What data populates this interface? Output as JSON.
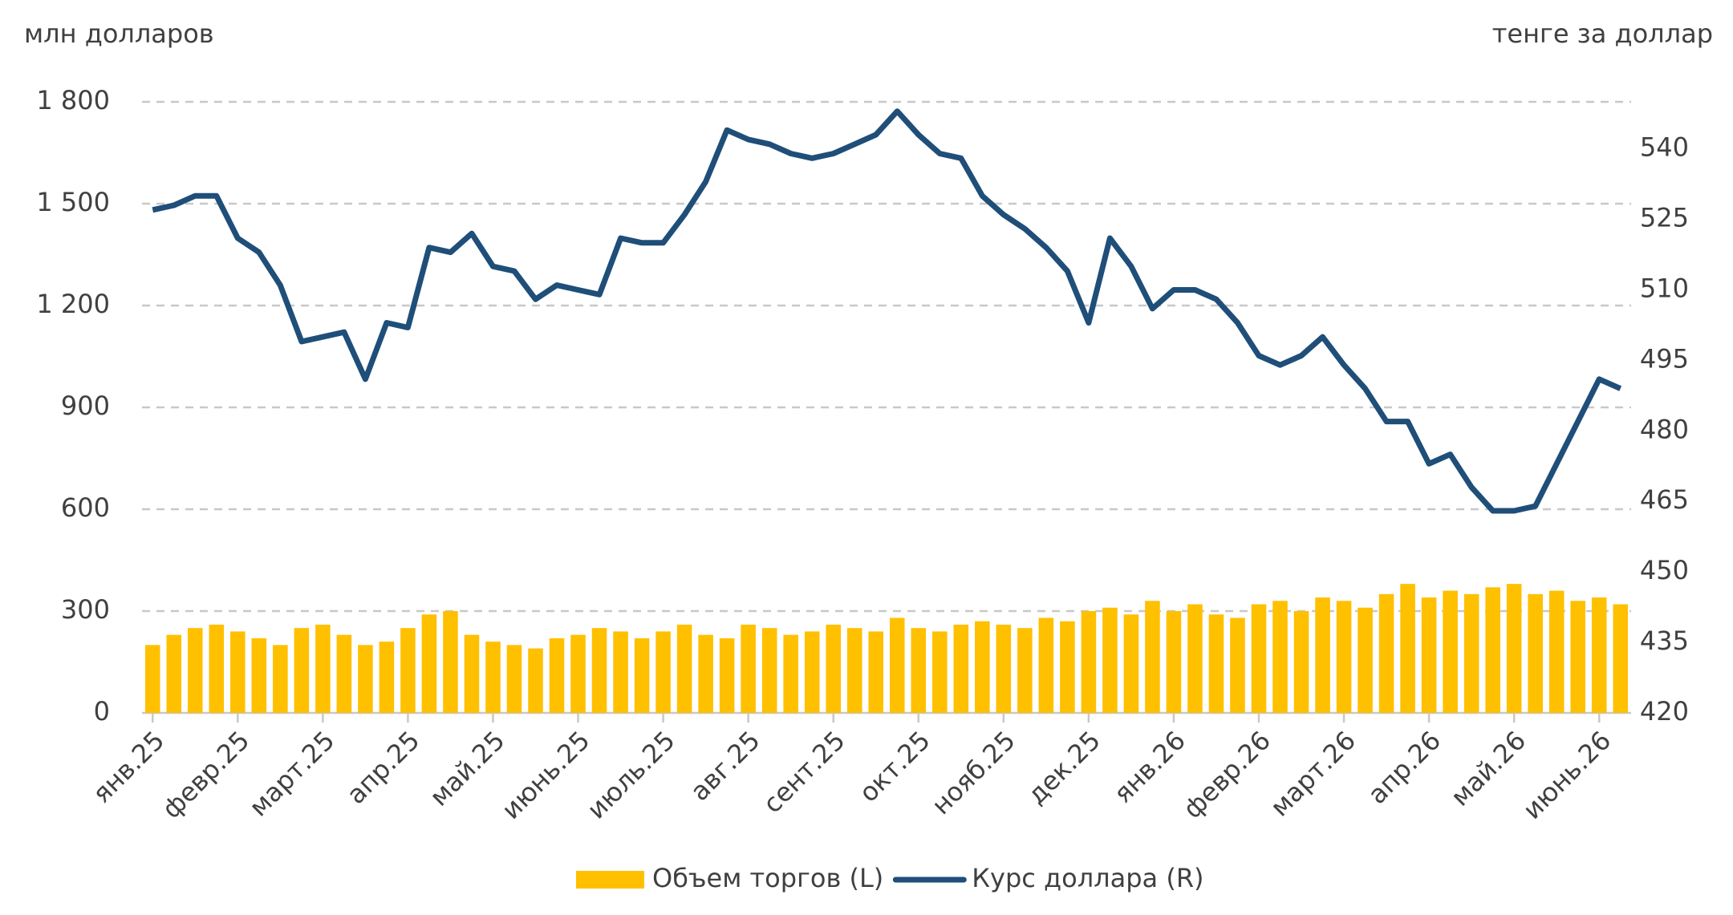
{
  "chart_data": {
    "type": "combo",
    "y_label": "млн долларов",
    "y2_label": "тенге за доллар",
    "categories": [
      "янв.25",
      null,
      null,
      null,
      "февр.25",
      null,
      null,
      null,
      "март.25",
      null,
      null,
      null,
      "апр.25",
      null,
      null,
      null,
      "май.25",
      null,
      null,
      null,
      "июнь.25",
      null,
      null,
      null,
      "июль.25",
      null,
      null,
      null,
      "авг.25",
      null,
      null,
      null,
      "сент.25",
      null,
      null,
      null,
      "окт.25",
      null,
      null,
      null,
      "нояб.25",
      null,
      null,
      null,
      "дек.25",
      null,
      null,
      null,
      "янв.26",
      null,
      null,
      null,
      "февр.26",
      null,
      null,
      null,
      "март.26",
      null,
      null,
      null,
      "апр.26",
      null,
      null,
      null,
      "май.26",
      null,
      null,
      null,
      "июнь.26",
      null
    ],
    "series": [
      {
        "name": "Объем торгов (L)",
        "type": "bar",
        "color": "#FFC000",
        "values": [
          200,
          230,
          250,
          260,
          240,
          220,
          200,
          250,
          260,
          230,
          200,
          210,
          250,
          290,
          300,
          230,
          210,
          200,
          190,
          220,
          230,
          250,
          240,
          220,
          240,
          260,
          230,
          220,
          260,
          250,
          230,
          240,
          260,
          250,
          240,
          280,
          250,
          240,
          260,
          270,
          260,
          250,
          280,
          270,
          300,
          310,
          290,
          330,
          300,
          320,
          290,
          280,
          320,
          330,
          300,
          340,
          330,
          310,
          350,
          380,
          340,
          360,
          350,
          370,
          380,
          350,
          360,
          330,
          340,
          320
        ]
      },
      {
        "name": "Курс доллара (R)",
        "type": "line",
        "axis": "y2",
        "color": "#1F4E79",
        "values": [
          527,
          528,
          530,
          530,
          521,
          518,
          511,
          499,
          500,
          501,
          491,
          503,
          502,
          519,
          518,
          522,
          515,
          514,
          508,
          511,
          510,
          509,
          521,
          520,
          520,
          526,
          533,
          544,
          542,
          541,
          539,
          538,
          539,
          541,
          543,
          548,
          543,
          539,
          538,
          530,
          526,
          523,
          519,
          514,
          503,
          521,
          515,
          506,
          510,
          510,
          508,
          503,
          496,
          494,
          496,
          500,
          494,
          489,
          482,
          482,
          473,
          475,
          468,
          463,
          463,
          464,
          473,
          482,
          491,
          489
        ]
      }
    ],
    "ylim": [
      0,
      1800
    ],
    "yticks": [
      0,
      300,
      600,
      900,
      {
        "value": 1200,
        "label": "1 200"
      },
      {
        "value": 1500,
        "label": "1 500"
      },
      {
        "value": 1800,
        "label": "1 800"
      }
    ],
    "y2lim": [
      420,
      550
    ],
    "y2ticks": [
      420,
      435,
      450,
      465,
      480,
      495,
      510,
      525,
      540
    ],
    "grid": true
  }
}
